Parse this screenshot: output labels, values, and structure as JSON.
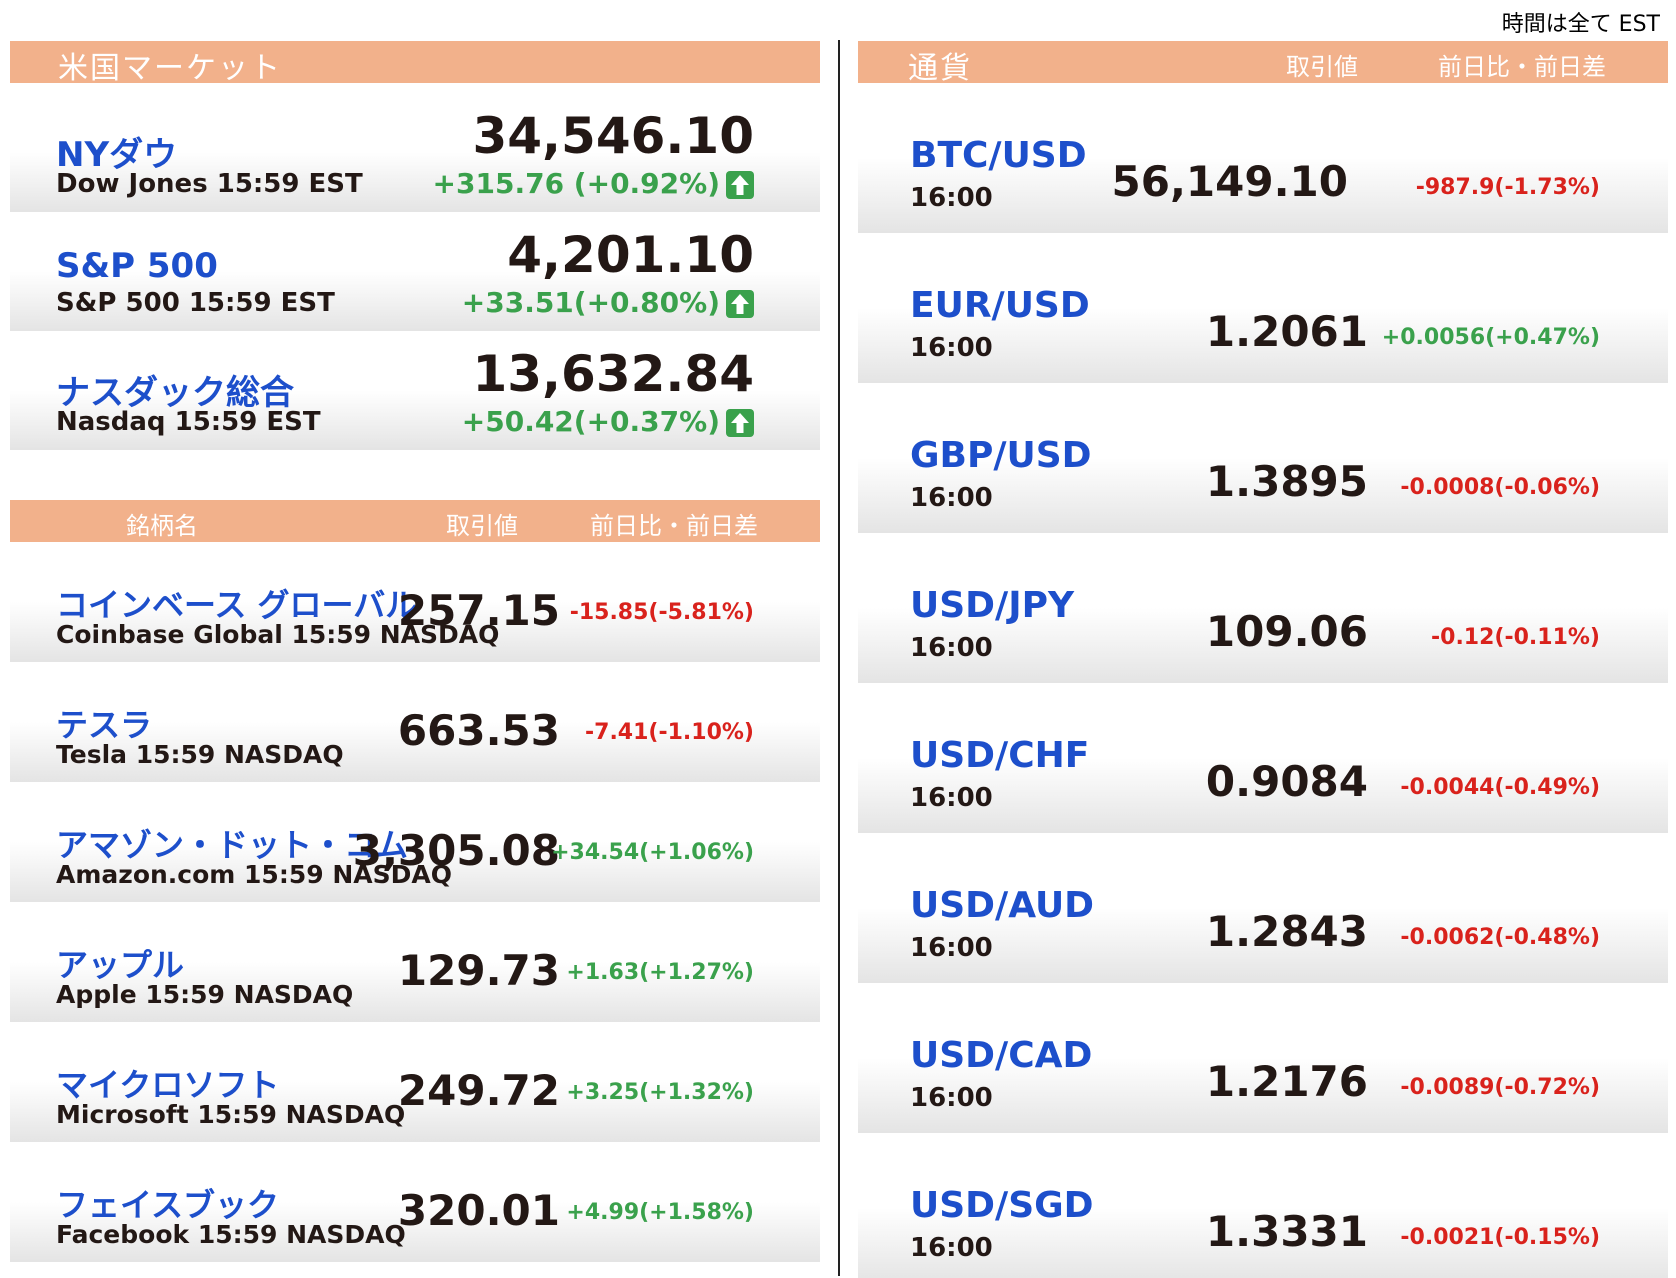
{
  "timezone_note": "時間は全て EST",
  "us_market": {
    "title": "米国マーケット",
    "indices": [
      {
        "name": "NYダウ",
        "sub": "Dow Jones 15:59 EST",
        "price": "34,546.10",
        "change": "+315.76 (+0.92%)",
        "direction": "up"
      },
      {
        "name": "S&P 500",
        "sub": "S&P 500 15:59 EST",
        "price": "4,201.10",
        "change": "+33.51(+0.80%)",
        "direction": "up"
      },
      {
        "name": "ナスダック総合",
        "sub": "Nasdaq 15:59 EST",
        "price": "13,632.84",
        "change": "+50.42(+0.37%)",
        "direction": "up"
      }
    ]
  },
  "stocks": {
    "header": {
      "col_name": "銘柄名",
      "col_price": "取引値",
      "col_change": "前日比・前日差"
    },
    "rows": [
      {
        "name": "コインベース グローバル",
        "sub": "Coinbase Global 15:59  NASDAQ",
        "price": "257.15",
        "change": "-15.85(-5.81%)",
        "direction": "down"
      },
      {
        "name": "テスラ",
        "sub": "Tesla 15:59  NASDAQ",
        "price": "663.53",
        "change": "-7.41(-1.10%)",
        "direction": "down"
      },
      {
        "name": "アマゾン・ドット・コム",
        "sub": "Amazon.com 15:59  NASDAQ",
        "price": "3,305.08",
        "change": "+34.54(+1.06%)",
        "direction": "up"
      },
      {
        "name": "アップル",
        "sub": "Apple 15:59  NASDAQ",
        "price": "129.73",
        "change": "+1.63(+1.27%)",
        "direction": "up"
      },
      {
        "name": "マイクロソフト",
        "sub": "Microsoft 15:59  NASDAQ",
        "price": "249.72",
        "change": "+3.25(+1.32%)",
        "direction": "up"
      },
      {
        "name": "フェイスブック",
        "sub": "Facebook 15:59  NASDAQ",
        "price": "320.01",
        "change": "+4.99(+1.58%)",
        "direction": "up"
      }
    ]
  },
  "currency": {
    "header": {
      "col_name": "通貨",
      "col_price": "取引値",
      "col_change": "前日比・前日差"
    },
    "rows": [
      {
        "name": "BTC/USD",
        "sub": "16:00",
        "price": "56,149.10",
        "change": "-987.9(-1.73%)",
        "direction": "down"
      },
      {
        "name": "EUR/USD",
        "sub": "16:00",
        "price": "1.2061",
        "change": "+0.0056(+0.47%)",
        "direction": "up"
      },
      {
        "name": "GBP/USD",
        "sub": "16:00",
        "price": "1.3895",
        "change": "-0.0008(-0.06%)",
        "direction": "down"
      },
      {
        "name": "USD/JPY",
        "sub": "16:00",
        "price": "109.06",
        "change": "-0.12(-0.11%)",
        "direction": "down"
      },
      {
        "name": "USD/CHF",
        "sub": "16:00",
        "price": "0.9084",
        "change": "-0.0044(-0.49%)",
        "direction": "down"
      },
      {
        "name": "USD/AUD",
        "sub": "16:00",
        "price": "1.2843",
        "change": "-0.0062(-0.48%)",
        "direction": "down"
      },
      {
        "name": "USD/CAD",
        "sub": "16:00",
        "price": "1.2176",
        "change": "-0.0089(-0.72%)",
        "direction": "down"
      },
      {
        "name": "USD/SGD",
        "sub": "16:00",
        "price": "1.3331",
        "change": "-0.0021(-0.15%)",
        "direction": "down"
      }
    ]
  },
  "colors": {
    "header_bg": "#f2b18b",
    "name_blue": "#1d4fcb",
    "up_green": "#3aa14c",
    "down_red": "#d9221c"
  },
  "icons": {
    "index_arrow": "arrow-up-icon"
  }
}
